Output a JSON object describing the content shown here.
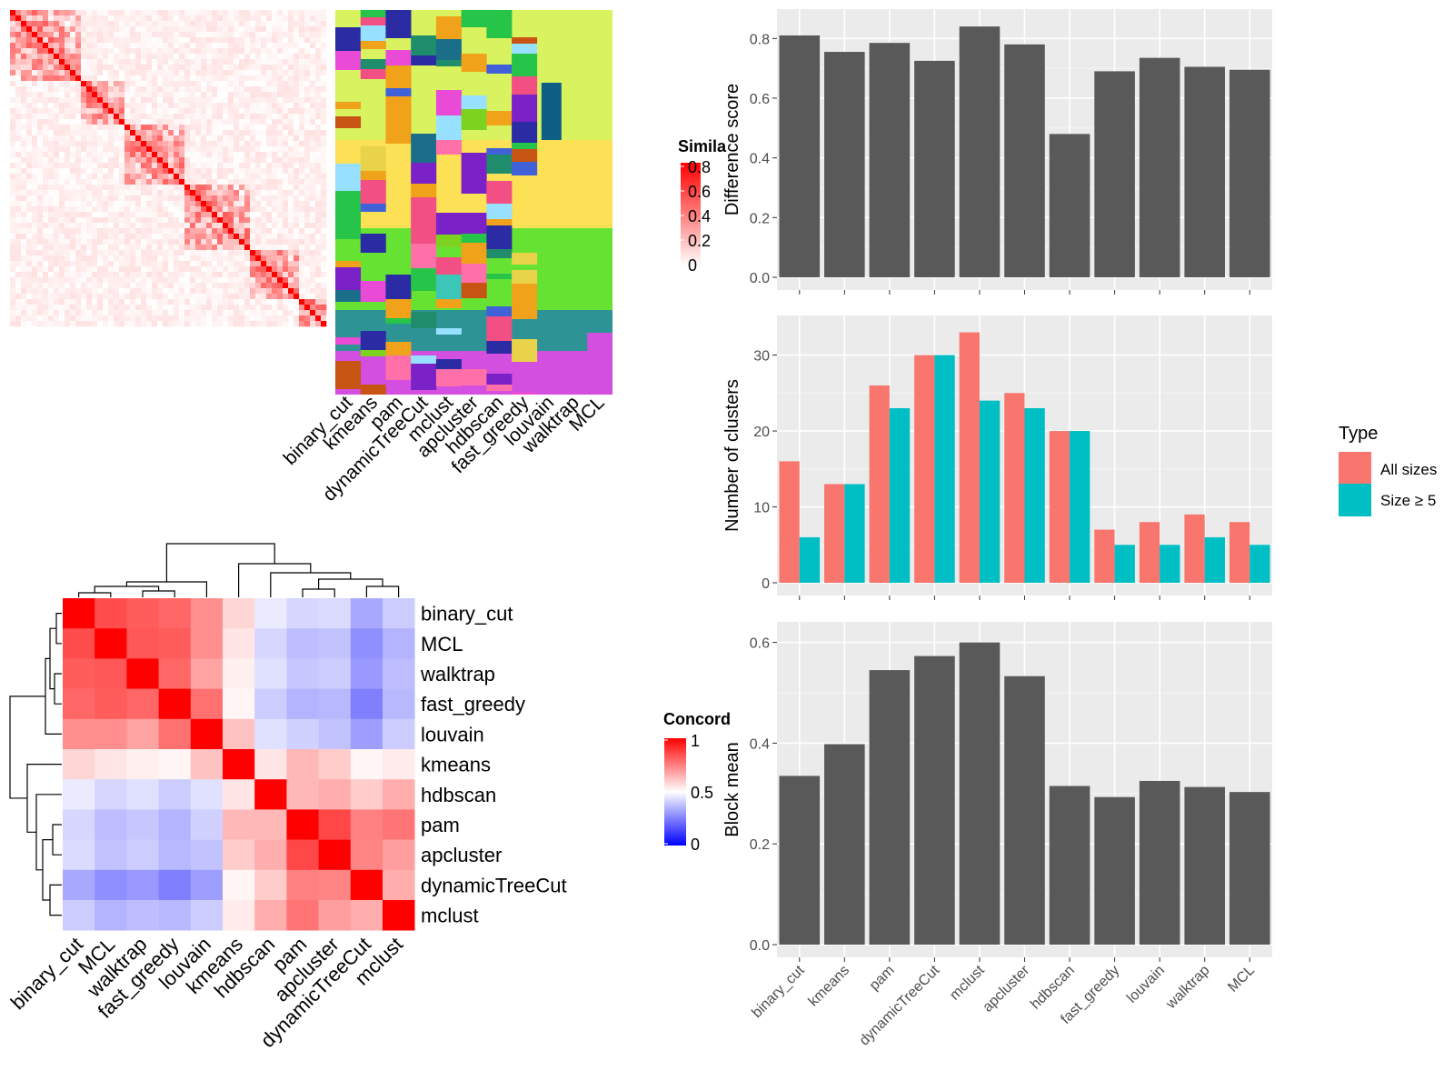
{
  "colors": {
    "panel_bg": "#ebebeb",
    "grid_major": "#ffffff",
    "bar_fill": "#595959",
    "all_sizes": "#f8766d",
    "size_ge5": "#00bfc4",
    "heat_high": "#ff0000",
    "heat_mid": "#ffffff",
    "heat_low": "#0000ff"
  },
  "chart_data": [
    {
      "id": "similarity_heatmap",
      "type": "heatmap",
      "title": "",
      "legend_title": "Simila",
      "legend_ticks": [
        "0.8",
        "0.6",
        "0.4",
        "0.2",
        "0"
      ],
      "column_labels": [
        "binary_cut",
        "kmeans",
        "pam",
        "dynamicTreeCut",
        "mclust",
        "apcluster",
        "hdbscan",
        "fast_greedy",
        "louvain",
        "walktrap",
        "MCL"
      ],
      "block_proportions": [
        0.23,
        0.14,
        0.19,
        0.19,
        0.17,
        0.08
      ]
    },
    {
      "id": "difference_score",
      "type": "bar",
      "categories": [
        "binary_cut",
        "kmeans",
        "pam",
        "dynamicTreeCut",
        "mclust",
        "apcluster",
        "hdbscan",
        "fast_greedy",
        "louvain",
        "walktrap",
        "MCL"
      ],
      "values": [
        0.81,
        0.755,
        0.785,
        0.725,
        0.84,
        0.78,
        0.48,
        0.69,
        0.735,
        0.705,
        0.695
      ],
      "ylabel": "Difference score",
      "ylim": [
        0,
        0.84
      ],
      "yticks": [
        "0.0",
        "0.2",
        "0.4",
        "0.6",
        "0.8"
      ]
    },
    {
      "id": "number_of_clusters",
      "type": "bar",
      "categories": [
        "binary_cut",
        "kmeans",
        "pam",
        "dynamicTreeCut",
        "mclust",
        "apcluster",
        "hdbscan",
        "fast_greedy",
        "louvain",
        "walktrap",
        "MCL"
      ],
      "series": [
        {
          "name": "All sizes",
          "values": [
            16,
            13,
            26,
            30,
            33,
            25,
            20,
            7,
            8,
            9,
            8
          ]
        },
        {
          "name": "Size ≥ 5",
          "values": [
            6,
            13,
            23,
            30,
            24,
            23,
            20,
            5,
            5,
            6,
            5
          ]
        }
      ],
      "ylabel": "Number of clusters",
      "ylim": [
        0,
        33
      ],
      "yticks": [
        "0",
        "10",
        "20",
        "30"
      ],
      "legend_title": "Type",
      "legend_position": "right"
    },
    {
      "id": "block_mean",
      "type": "bar",
      "categories": [
        "binary_cut",
        "kmeans",
        "pam",
        "dynamicTreeCut",
        "mclust",
        "apcluster",
        "hdbscan",
        "fast_greedy",
        "louvain",
        "walktrap",
        "MCL"
      ],
      "values": [
        0.335,
        0.398,
        0.545,
        0.573,
        0.6,
        0.533,
        0.315,
        0.293,
        0.325,
        0.313,
        0.303
      ],
      "ylabel": "Block mean",
      "ylim": [
        0,
        0.6
      ],
      "yticks": [
        "0.0",
        "0.2",
        "0.4",
        "0.6"
      ]
    },
    {
      "id": "concordance_heatmap",
      "type": "heatmap",
      "legend_title": "Concord",
      "legend_ticks": [
        "1",
        "0.5",
        "0"
      ],
      "row_labels": [
        "binary_cut",
        "MCL",
        "walktrap",
        "fast_greedy",
        "louvain",
        "kmeans",
        "hdbscan",
        "pam",
        "apcluster",
        "dynamicTreeCut",
        "mclust"
      ],
      "column_labels": [
        "binary_cut",
        "MCL",
        "walktrap",
        "fast_greedy",
        "louvain",
        "kmeans",
        "hdbscan",
        "pam",
        "apcluster",
        "dynamicTreeCut",
        "mclust"
      ],
      "matrix": [
        [
          1.0,
          0.85,
          0.82,
          0.8,
          0.72,
          0.58,
          0.46,
          0.42,
          0.43,
          0.33,
          0.4
        ],
        [
          0.85,
          1.0,
          0.83,
          0.82,
          0.72,
          0.55,
          0.42,
          0.37,
          0.38,
          0.28,
          0.35
        ],
        [
          0.82,
          0.83,
          1.0,
          0.8,
          0.68,
          0.53,
          0.44,
          0.39,
          0.4,
          0.3,
          0.37
        ],
        [
          0.8,
          0.82,
          0.8,
          1.0,
          0.78,
          0.52,
          0.4,
          0.35,
          0.36,
          0.25,
          0.36
        ],
        [
          0.72,
          0.72,
          0.68,
          0.78,
          1.0,
          0.62,
          0.44,
          0.41,
          0.38,
          0.31,
          0.4
        ],
        [
          0.58,
          0.55,
          0.53,
          0.52,
          0.62,
          1.0,
          0.55,
          0.64,
          0.6,
          0.52,
          0.54
        ],
        [
          0.46,
          0.42,
          0.44,
          0.4,
          0.44,
          0.55,
          1.0,
          0.64,
          0.66,
          0.6,
          0.66
        ],
        [
          0.42,
          0.37,
          0.39,
          0.35,
          0.41,
          0.64,
          0.64,
          1.0,
          0.86,
          0.75,
          0.77
        ],
        [
          0.43,
          0.38,
          0.4,
          0.36,
          0.38,
          0.6,
          0.66,
          0.86,
          1.0,
          0.74,
          0.69
        ],
        [
          0.33,
          0.28,
          0.3,
          0.25,
          0.31,
          0.52,
          0.6,
          0.75,
          0.74,
          1.0,
          0.66
        ],
        [
          0.4,
          0.35,
          0.37,
          0.36,
          0.4,
          0.54,
          0.66,
          0.77,
          0.69,
          0.66,
          1.0
        ]
      ]
    }
  ]
}
